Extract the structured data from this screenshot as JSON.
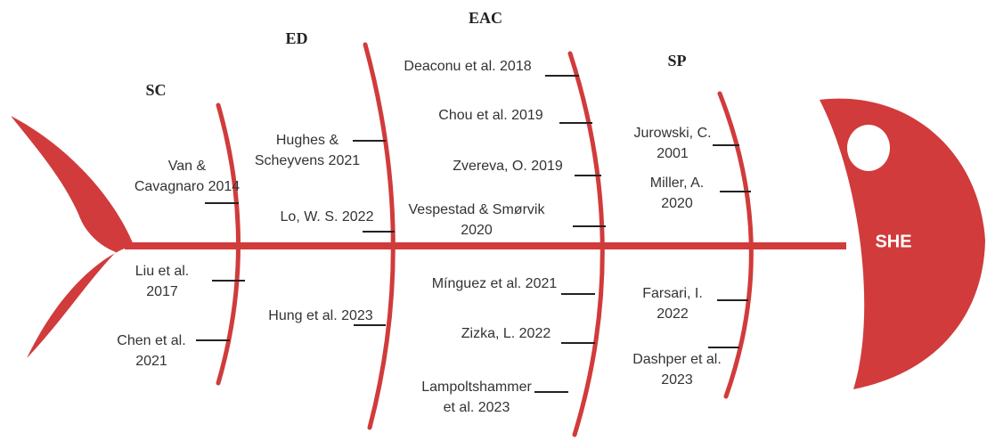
{
  "head": "SHE",
  "categories": [
    {
      "label": "SC",
      "citations": [
        {
          "lines": [
            "Van &",
            "Cavagnaro 2014"
          ]
        },
        {
          "lines": [
            "Liu et al.",
            "2017"
          ]
        },
        {
          "lines": [
            "Chen et al.",
            "2021"
          ]
        }
      ]
    },
    {
      "label": "ED",
      "citations": [
        {
          "lines": [
            "Hughes &",
            "Scheyvens 2021"
          ]
        },
        {
          "lines": [
            "Lo, W. S. 2022"
          ]
        },
        {
          "lines": [
            "Hung et al. 2023"
          ]
        }
      ]
    },
    {
      "label": "EAC",
      "citations": [
        {
          "lines": [
            "Deaconu et al. 2018"
          ]
        },
        {
          "lines": [
            "Chou et al. 2019"
          ]
        },
        {
          "lines": [
            "Zvereva, O. 2019"
          ]
        },
        {
          "lines": [
            "Vespestad & Smørvik",
            "2020"
          ]
        },
        {
          "lines": [
            "Mínguez et al. 2021"
          ]
        },
        {
          "lines": [
            "Zizka, L. 2022"
          ]
        },
        {
          "lines": [
            "Lampoltshammer",
            "et al. 2023"
          ]
        }
      ]
    },
    {
      "label": "SP",
      "citations": [
        {
          "lines": [
            "Jurowski, C.",
            "2001"
          ]
        },
        {
          "lines": [
            "Miller, A.",
            "2020"
          ]
        },
        {
          "lines": [
            "Farsari, I.",
            "2022"
          ]
        },
        {
          "lines": [
            "Dashper et al.",
            "2023"
          ]
        }
      ]
    }
  ]
}
